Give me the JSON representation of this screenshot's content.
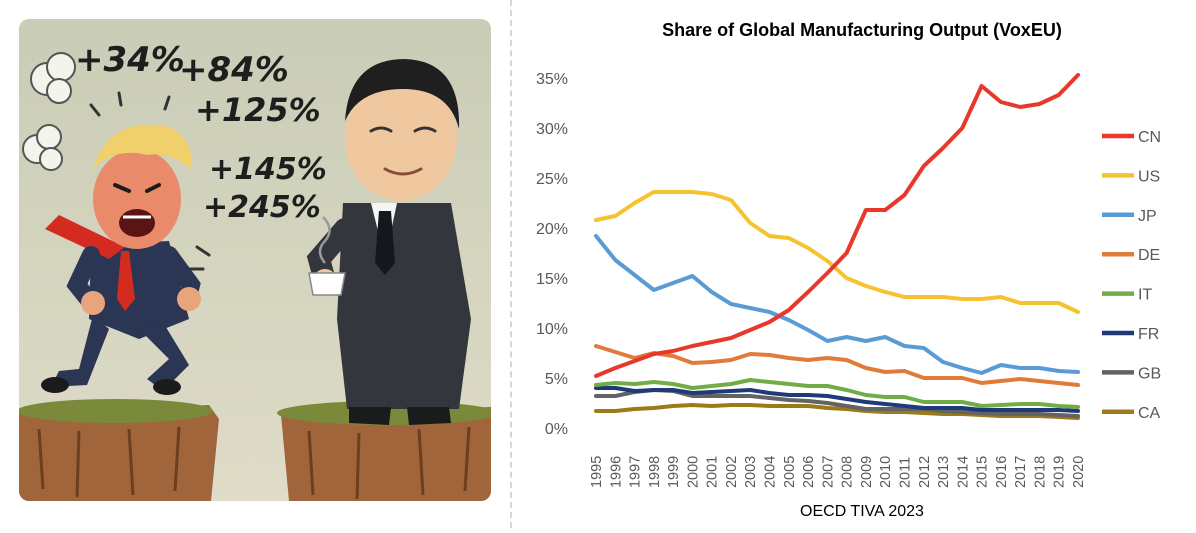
{
  "cartoon": {
    "tariff_labels": [
      "+34%",
      "+84%",
      "+125%",
      "+145%",
      "+245%"
    ]
  },
  "chart_data": {
    "type": "line",
    "title": "Share of Global Manufacturing Output (VoxEU)",
    "source": "OECD TIVA 2023",
    "xlabel": "",
    "ylabel": "",
    "y_ticks": [
      "0%",
      "5%",
      "10%",
      "15%",
      "20%",
      "25%",
      "30%",
      "35%"
    ],
    "ylim": [
      0,
      35
    ],
    "legend_position": "right",
    "x": [
      1995,
      1996,
      1997,
      1998,
      1999,
      2000,
      2001,
      2002,
      2003,
      2004,
      2005,
      2006,
      2007,
      2008,
      2009,
      2010,
      2011,
      2012,
      2013,
      2014,
      2015,
      2016,
      2017,
      2018,
      2019,
      2020
    ],
    "series": [
      {
        "name": "CN",
        "color": "#e8382b",
        "values": [
          5.2,
          6.0,
          6.7,
          7.4,
          7.7,
          8.2,
          8.6,
          9.0,
          9.8,
          10.6,
          11.8,
          13.6,
          15.5,
          17.5,
          21.8,
          21.8,
          23.3,
          26.2,
          28.0,
          30.0,
          34.2,
          32.6,
          32.1,
          32.4,
          33.3,
          35.3
        ]
      },
      {
        "name": "US",
        "color": "#f5c32f",
        "values": [
          20.8,
          21.2,
          22.5,
          23.6,
          23.6,
          23.6,
          23.4,
          22.8,
          20.5,
          19.2,
          19.0,
          18.0,
          16.7,
          15.0,
          14.2,
          13.6,
          13.1,
          13.1,
          13.1,
          12.9,
          12.9,
          13.1,
          12.5,
          12.5,
          12.5,
          11.6
        ]
      },
      {
        "name": "JP",
        "color": "#5b9bd5",
        "values": [
          19.2,
          16.8,
          15.3,
          13.8,
          14.5,
          15.2,
          13.6,
          12.4,
          12.0,
          11.6,
          10.8,
          9.8,
          8.7,
          9.1,
          8.7,
          9.1,
          8.2,
          8.0,
          6.6,
          6.0,
          5.5,
          6.3,
          6.0,
          6.0,
          5.7,
          5.6
        ]
      },
      {
        "name": "DE",
        "color": "#e07b39",
        "values": [
          8.2,
          7.6,
          7.0,
          7.5,
          7.2,
          6.5,
          6.6,
          6.8,
          7.4,
          7.3,
          7.0,
          6.8,
          7.0,
          6.8,
          6.0,
          5.6,
          5.7,
          5.0,
          5.0,
          5.0,
          4.5,
          4.7,
          4.9,
          4.7,
          4.5,
          4.3
        ]
      },
      {
        "name": "IT",
        "color": "#70ad47",
        "values": [
          4.3,
          4.5,
          4.4,
          4.6,
          4.4,
          4.0,
          4.2,
          4.4,
          4.8,
          4.6,
          4.4,
          4.2,
          4.2,
          3.8,
          3.3,
          3.1,
          3.1,
          2.6,
          2.6,
          2.6,
          2.2,
          2.3,
          2.4,
          2.4,
          2.2,
          2.1
        ]
      },
      {
        "name": "FR",
        "color": "#1f3a78",
        "values": [
          4.0,
          4.0,
          3.7,
          3.8,
          3.8,
          3.5,
          3.6,
          3.7,
          3.8,
          3.5,
          3.3,
          3.3,
          3.2,
          2.9,
          2.6,
          2.4,
          2.2,
          2.0,
          2.0,
          2.0,
          1.8,
          1.8,
          1.8,
          1.8,
          1.8,
          1.7
        ]
      },
      {
        "name": "GB",
        "color": "#636363",
        "values": [
          3.2,
          3.2,
          3.6,
          3.8,
          3.7,
          3.2,
          3.2,
          3.2,
          3.2,
          3.0,
          2.8,
          2.7,
          2.5,
          2.2,
          1.9,
          1.9,
          1.9,
          1.9,
          1.7,
          1.6,
          1.5,
          1.4,
          1.4,
          1.4,
          1.3,
          1.2
        ]
      },
      {
        "name": "CA",
        "color": "#9c7a1a",
        "values": [
          1.7,
          1.7,
          1.9,
          2.0,
          2.2,
          2.3,
          2.2,
          2.3,
          2.3,
          2.2,
          2.2,
          2.2,
          2.0,
          1.9,
          1.7,
          1.6,
          1.6,
          1.5,
          1.4,
          1.4,
          1.3,
          1.2,
          1.2,
          1.2,
          1.1,
          1.0
        ]
      }
    ]
  }
}
